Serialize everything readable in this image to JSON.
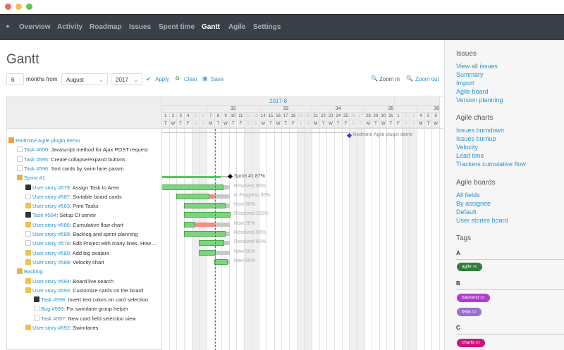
{
  "window": {
    "controls": [
      "#ed6a5e",
      "#f5bf4f",
      "#61c554"
    ]
  },
  "nav": {
    "items": [
      "+",
      "Overview",
      "Activity",
      "Roadmap",
      "Issues",
      "Spent time",
      "Gantt",
      "Agile",
      "Settings"
    ],
    "selected": "Gantt"
  },
  "page": {
    "title": "Gantt"
  },
  "controls": {
    "months": "6",
    "months_from": "months from",
    "month": "August",
    "year": "2017",
    "apply": "Apply",
    "clear": "Clear",
    "save": "Save",
    "zoom_in": "Zoom in",
    "zoom_out": "Zoom out"
  },
  "gantt": {
    "month_label": "2017-8",
    "today": "2017-08-08",
    "days": [
      1,
      2,
      3,
      4,
      5,
      6,
      7,
      8,
      9,
      10,
      11,
      12,
      13,
      14,
      15,
      16,
      17,
      18,
      19,
      20,
      21,
      22,
      23,
      24,
      25,
      26,
      27,
      28,
      29,
      30,
      31,
      1,
      2,
      3,
      4,
      5,
      6
    ],
    "weekdays": [
      "T",
      "W",
      "T",
      "F",
      "S",
      "S",
      "M",
      "T",
      "W",
      "T",
      "F",
      "S",
      "S",
      "M",
      "T",
      "W",
      "T",
      "F",
      "S",
      "S",
      "M",
      "T",
      "W",
      "T",
      "F",
      "S",
      "S",
      "M",
      "T",
      "W",
      "T",
      "F",
      "S",
      "S",
      "M",
      "T",
      "W"
    ],
    "weeks": [
      {
        "label": "",
        "days": 6
      },
      {
        "label": "32",
        "days": 7
      },
      {
        "label": "33",
        "days": 7
      },
      {
        "label": "34",
        "days": 7
      },
      {
        "label": "35",
        "days": 7
      },
      {
        "label": "36",
        "days": 3
      }
    ],
    "project": {
      "name": "Redmine Agile plugin demo",
      "milestone_day": 26
    },
    "rows": [
      {
        "level": 0,
        "type": "project",
        "link": "Redmine Agile plugin demo",
        "text": ""
      },
      {
        "level": 1,
        "type": "bug",
        "link": "Task #600",
        "text": ": Javascript method for Ajax POST request"
      },
      {
        "level": 1,
        "type": "feature",
        "link": "Task #595",
        "text": ": Create collapse/expand buttons"
      },
      {
        "level": 1,
        "type": "bug",
        "link": "Task #596",
        "text": ": Sort cards by swim lane param"
      },
      {
        "level": 1,
        "type": "version",
        "link": "Sprint #1",
        "text": "",
        "bar": {
          "start": 1,
          "end": 9,
          "done": 87,
          "label": "Sprint #1 87%",
          "version": true
        }
      },
      {
        "level": 2,
        "type": "task",
        "link": "User story #579",
        "text": ": Assign Task to Area",
        "bar": {
          "start": 1,
          "end": 9,
          "done": 90,
          "label": "Resolved 90%"
        }
      },
      {
        "level": 2,
        "type": "bug",
        "link": "User story #587",
        "text": ": Sortable board cards",
        "bar": {
          "start": 3,
          "end": 9,
          "done": 60,
          "label": "In Progress 60%"
        }
      },
      {
        "level": 2,
        "type": "story",
        "link": "User story #583",
        "text": ": Print Tasks",
        "bar": {
          "start": 4,
          "end": 9,
          "done": 90,
          "label": "New 90%"
        }
      },
      {
        "level": 2,
        "type": "task",
        "link": "Task #584",
        "text": ": Setup CI server",
        "bar": {
          "start": 4,
          "end": 9,
          "done": 100,
          "label": "Resolved 100%"
        }
      },
      {
        "level": 2,
        "type": "story",
        "link": "User story #586",
        "text": ": Cumulative flow chart",
        "bar": {
          "start": 4,
          "end": 9,
          "done": 20,
          "label": "New 20%"
        }
      },
      {
        "level": 2,
        "type": "feature",
        "link": "User story #588",
        "text": ": Backlog and sprint planning",
        "bar": {
          "start": 4,
          "end": 9,
          "done": 90,
          "label": "Resolved 90%"
        }
      },
      {
        "level": 2,
        "type": "feature",
        "link": "User story #578",
        "text": ": Edit Project with many lines. How ...",
        "bar": {
          "start": 6,
          "end": 9,
          "done": 80,
          "label": "Resolved 80%"
        }
      },
      {
        "level": 2,
        "type": "story",
        "link": "User story #580",
        "text": ": Add big avatars",
        "bar": {
          "start": 6,
          "end": 9,
          "done": 50,
          "label": "New 50%"
        }
      },
      {
        "level": 2,
        "type": "story",
        "link": "User story #589",
        "text": ": Velocity chart",
        "bar": {
          "start": 8,
          "end": 9,
          "done": 80,
          "label": "New 80%"
        }
      },
      {
        "level": 1,
        "type": "version",
        "link": "Backlog",
        "text": ""
      },
      {
        "level": 2,
        "type": "story",
        "link": "User story #594",
        "text": ": Board live search"
      },
      {
        "level": 2,
        "type": "story",
        "link": "User story #593",
        "text": ": Customize cards on the board"
      },
      {
        "level": 3,
        "type": "task",
        "link": "Task #598",
        "text": ": Invert text colors on card selection"
      },
      {
        "level": 3,
        "type": "bug",
        "link": "Bug #599",
        "text": ": Fix swimlane group helper"
      },
      {
        "level": 3,
        "type": "feature",
        "link": "Task #597",
        "text": ": New card field selection view"
      },
      {
        "level": 2,
        "type": "story",
        "link": "User story #592",
        "text": ": Swimlanes"
      }
    ],
    "colors": {
      "done": "#7ed47e",
      "late": "#f28b8b",
      "todo": "#c8c8c8",
      "today": "#e03c3c",
      "milestone": "#3333dd"
    }
  },
  "sidebar": {
    "issues": {
      "title": "Issues",
      "links": [
        "View all issues",
        "Summary",
        "Import",
        "Agile board",
        "Version planning"
      ]
    },
    "charts": {
      "title": "Agile charts",
      "links": [
        "Issues burndown",
        "Issues burnup",
        "Velocity",
        "Lead time",
        "Trackers cumulative flow"
      ]
    },
    "boards": {
      "title": "Agile boards",
      "links": [
        "All fields",
        "By assignee",
        "Default",
        "User stories board"
      ]
    },
    "tags": {
      "title": "Tags",
      "groups": [
        {
          "letter": "A",
          "tags": [
            {
              "name": "agile",
              "count": "(4)",
              "color": "#2e7d3a"
            }
          ]
        },
        {
          "letter": "B",
          "tags": [
            {
              "name": "backend",
              "count": "(2)",
              "color": "#b03ccf"
            },
            {
              "name": "beta",
              "count": "(1)",
              "color": "#9a6fcf"
            }
          ]
        },
        {
          "letter": "C",
          "tags": [
            {
              "name": "charts",
              "count": "(2)",
              "color": "#c9177e"
            }
          ]
        }
      ]
    }
  }
}
